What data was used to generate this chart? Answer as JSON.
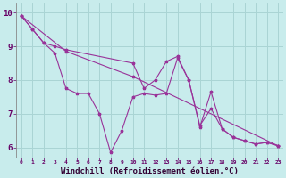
{
  "xlabel": "Windchill (Refroidissement éolien,°C)",
  "ylabel": "",
  "background_color": "#c8ecec",
  "grid_color": "#aad4d4",
  "line_color": "#993399",
  "line_color2": "#aa22aa",
  "xlim": [
    -0.5,
    23.5
  ],
  "ylim": [
    5.7,
    10.3
  ],
  "xtick_fontsize": 4.5,
  "ytick_fontsize": 6.5,
  "xlabel_fontsize": 6.5,
  "series": [
    {
      "x": [
        0,
        1,
        2,
        3,
        4,
        10,
        11,
        12,
        13,
        14,
        15,
        16,
        17,
        18,
        19,
        20,
        21,
        22,
        23
      ],
      "y": [
        9.9,
        9.5,
        9.1,
        9.0,
        8.9,
        8.5,
        7.75,
        8.0,
        8.55,
        8.7,
        8.0,
        6.6,
        7.65,
        6.55,
        6.3,
        6.2,
        6.1,
        6.15,
        6.05
      ]
    },
    {
      "x": [
        0,
        1,
        2,
        3,
        4,
        5,
        6,
        7,
        8,
        9,
        10,
        11,
        12,
        13,
        14,
        15,
        16,
        17,
        18,
        19,
        20,
        21,
        22,
        23
      ],
      "y": [
        9.9,
        9.5,
        9.1,
        8.8,
        7.75,
        7.6,
        7.6,
        7.0,
        5.85,
        6.5,
        7.5,
        7.6,
        7.55,
        7.6,
        8.65,
        8.0,
        6.65,
        7.15,
        6.55,
        6.3,
        6.2,
        6.1,
        6.15,
        6.05
      ]
    },
    {
      "x": [
        0,
        4,
        10,
        23
      ],
      "y": [
        9.9,
        8.85,
        8.1,
        6.05
      ]
    }
  ]
}
